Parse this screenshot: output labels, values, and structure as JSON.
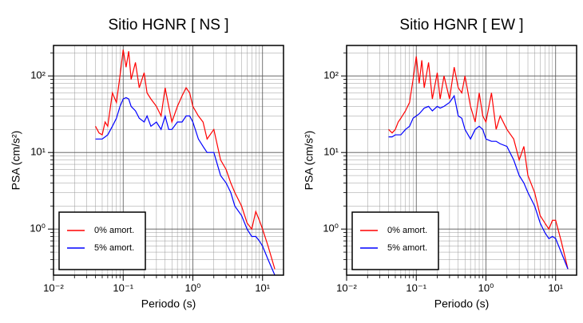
{
  "chart_data": [
    {
      "type": "line",
      "title": "Sitio HGNR [ NS ]",
      "x_label": "Periodo (s)",
      "y_label": "PSA (cm/s²)",
      "xscale": "log",
      "yscale": "log",
      "grid": true,
      "legend": "lower left",
      "xlim": [
        0.01,
        20
      ],
      "ylim": [
        0.25,
        250
      ],
      "xticks": [
        {
          "value": 0.01,
          "label": "10⁻²"
        },
        {
          "value": 0.1,
          "label": "10⁻¹"
        },
        {
          "value": 1,
          "label": "10⁰"
        },
        {
          "value": 10,
          "label": "10¹"
        }
      ],
      "yticks": [
        {
          "value": 1,
          "label": "10⁰"
        },
        {
          "value": 10,
          "label": "10¹"
        },
        {
          "value": 100,
          "label": "10²"
        }
      ],
      "x": [
        0.04,
        0.045,
        0.05,
        0.055,
        0.06,
        0.07,
        0.08,
        0.09,
        0.1,
        0.11,
        0.12,
        0.13,
        0.15,
        0.17,
        0.2,
        0.22,
        0.25,
        0.3,
        0.35,
        0.4,
        0.45,
        0.5,
        0.6,
        0.7,
        0.8,
        0.9,
        1.0,
        1.2,
        1.4,
        1.6,
        2.0,
        2.5,
        3.0,
        3.5,
        4.0,
        5.0,
        6.0,
        7.0,
        8.0,
        9.0,
        10,
        12,
        15
      ],
      "series": [
        {
          "name": "0% amort.",
          "color": "#ff0000",
          "values": [
            22,
            18,
            17,
            25,
            22,
            60,
            45,
            100,
            220,
            130,
            210,
            90,
            150,
            70,
            110,
            60,
            50,
            40,
            30,
            70,
            40,
            25,
            40,
            55,
            70,
            60,
            40,
            30,
            25,
            15,
            20,
            8,
            6,
            4,
            3,
            2,
            1.2,
            1.0,
            1.7,
            1.3,
            1.0,
            0.6,
            0.3
          ]
        },
        {
          "name": "5% amort.",
          "color": "#0000ff",
          "values": [
            15,
            15,
            15,
            16,
            17,
            22,
            28,
            40,
            50,
            52,
            50,
            40,
            35,
            28,
            25,
            30,
            22,
            25,
            20,
            30,
            20,
            20,
            25,
            25,
            30,
            30,
            25,
            15,
            12,
            10,
            10,
            5,
            4,
            3,
            2,
            1.5,
            1.0,
            0.8,
            0.8,
            0.7,
            0.6,
            0.4,
            0.25
          ]
        }
      ]
    },
    {
      "type": "line",
      "title": "Sitio HGNR [ EW ]",
      "x_label": "Periodo (s)",
      "y_label": "PSA (cm/s²)",
      "xscale": "log",
      "yscale": "log",
      "grid": true,
      "legend": "lower left",
      "xlim": [
        0.01,
        20
      ],
      "ylim": [
        0.25,
        250
      ],
      "xticks": [
        {
          "value": 0.01,
          "label": "10⁻²"
        },
        {
          "value": 0.1,
          "label": "10⁻¹"
        },
        {
          "value": 1,
          "label": "10⁰"
        },
        {
          "value": 10,
          "label": "10¹"
        }
      ],
      "yticks": [
        {
          "value": 1,
          "label": "10⁰"
        },
        {
          "value": 10,
          "label": "10¹"
        },
        {
          "value": 100,
          "label": "10²"
        }
      ],
      "x": [
        0.04,
        0.045,
        0.05,
        0.055,
        0.06,
        0.07,
        0.08,
        0.09,
        0.1,
        0.11,
        0.12,
        0.13,
        0.15,
        0.17,
        0.2,
        0.22,
        0.25,
        0.3,
        0.35,
        0.4,
        0.45,
        0.5,
        0.6,
        0.7,
        0.8,
        0.9,
        1.0,
        1.2,
        1.4,
        1.6,
        2.0,
        2.5,
        3.0,
        3.5,
        4.0,
        5.0,
        6.0,
        7.0,
        8.0,
        9.0,
        10,
        12,
        15
      ],
      "series": [
        {
          "name": "0% amort.",
          "color": "#ff0000",
          "values": [
            20,
            18,
            20,
            25,
            28,
            35,
            45,
            90,
            180,
            80,
            160,
            70,
            150,
            50,
            110,
            50,
            100,
            50,
            130,
            70,
            60,
            100,
            40,
            25,
            60,
            30,
            25,
            60,
            20,
            30,
            20,
            15,
            8,
            12,
            5,
            3,
            1.5,
            1.2,
            1.0,
            1.3,
            1.3,
            0.7,
            0.3
          ]
        },
        {
          "name": "5% amort.",
          "color": "#0000ff",
          "values": [
            16,
            16,
            17,
            17,
            17,
            20,
            22,
            28,
            30,
            32,
            35,
            38,
            40,
            35,
            40,
            38,
            40,
            45,
            55,
            30,
            28,
            20,
            15,
            20,
            22,
            20,
            15,
            14,
            14,
            13,
            12,
            8,
            5,
            4,
            3,
            2,
            1.2,
            0.9,
            0.75,
            0.8,
            0.75,
            0.5,
            0.3
          ]
        }
      ]
    }
  ]
}
